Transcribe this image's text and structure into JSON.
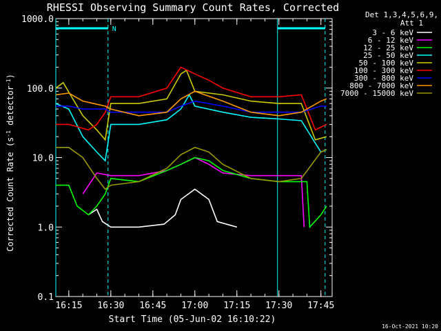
{
  "chart_data": {
    "type": "line",
    "title": "RHESSI Observing Summary Count Rates, Corrected",
    "xlabel": "Start Time (05-Jun-02 16:10:22)",
    "ylabel_main": "Corrected Count Rate (s",
    "ylabel_sup1": "-1",
    "ylabel_mid": " detector",
    "ylabel_sup2": "-1",
    "ylabel_end": ")",
    "ylim": [
      0.1,
      1000
    ],
    "yscale": "log",
    "y_ticks": [
      {
        "value": 0.1,
        "label": "0.1"
      },
      {
        "value": 1,
        "label": "1.0"
      },
      {
        "value": 10,
        "label": "10.0"
      },
      {
        "value": 100,
        "label": "100.0"
      },
      {
        "value": 1000,
        "label": "1000.0"
      }
    ],
    "xlim": [
      "16:10:22",
      "17:49:00"
    ],
    "x_ticks": [
      "16:15",
      "16:30",
      "16:45",
      "17:00",
      "17:15",
      "17:30",
      "17:45"
    ],
    "legend_header": [
      "Det 1,3,4,5,6,9,",
      "Att 1"
    ],
    "legend_placement": "right",
    "night_marker": "N",
    "markers": {
      "night_intervals": [
        [
          "16:10:22",
          "16:29:00"
        ],
        [
          "17:29:30",
          "17:46:30"
        ]
      ],
      "solid_lines": [
        "16:10:22",
        "17:29:30"
      ],
      "dashed_lines": [
        "16:29:00",
        "17:46:30"
      ]
    },
    "footer": "16-Oct-2021 10:20",
    "series": [
      {
        "name": "3 - 6 keV",
        "color": "#ffffff",
        "points": [
          [
            "16:22",
            "1.5"
          ],
          [
            "16:25",
            "1.8"
          ],
          [
            "16:27",
            "1.2"
          ],
          [
            "16:30",
            "1.0"
          ],
          [
            "16:40",
            "1.0"
          ],
          [
            "16:49",
            "1.1"
          ],
          [
            "16:53",
            "1.5"
          ],
          [
            "16:55",
            "2.5"
          ],
          [
            "17:00",
            "3.5"
          ],
          [
            "17:05",
            "2.5"
          ],
          [
            "17:08",
            "1.2"
          ],
          [
            "17:15",
            "1.0"
          ]
        ]
      },
      {
        "name": "6 - 12 keV",
        "color": "#ff00ff",
        "points": [
          [
            "16:20",
            "3.0"
          ],
          [
            "16:25",
            "6.0"
          ],
          [
            "16:30",
            "5.5"
          ],
          [
            "16:40",
            "5.5"
          ],
          [
            "16:50",
            "6.5"
          ],
          [
            "16:55",
            "8.0"
          ],
          [
            "17:00",
            "10.0"
          ],
          [
            "17:05",
            "8.0"
          ],
          [
            "17:10",
            "6.0"
          ],
          [
            "17:20",
            "5.5"
          ],
          [
            "17:28",
            "5.5"
          ],
          [
            "17:38",
            "5.5"
          ],
          [
            "17:39",
            "1.0"
          ]
        ]
      },
      {
        "name": "12 - 25 keV",
        "color": "#00ff00",
        "points": [
          [
            "16:10:22",
            "4.0"
          ],
          [
            "16:15",
            "4.0"
          ],
          [
            "16:18",
            "2.0"
          ],
          [
            "16:22",
            "1.5"
          ],
          [
            "16:25",
            "2.0"
          ],
          [
            "16:28",
            "3.0"
          ],
          [
            "16:30",
            "5.0"
          ],
          [
            "16:40",
            "4.5"
          ],
          [
            "16:50",
            "6.5"
          ],
          [
            "16:55",
            "8.0"
          ],
          [
            "17:00",
            "10.0"
          ],
          [
            "17:05",
            "9.0"
          ],
          [
            "17:10",
            "6.5"
          ],
          [
            "17:20",
            "5.0"
          ],
          [
            "17:30",
            "4.5"
          ],
          [
            "17:40",
            "4.5"
          ],
          [
            "17:41",
            "1.0"
          ],
          [
            "17:45",
            "1.5"
          ],
          [
            "17:47",
            "2.0"
          ]
        ]
      },
      {
        "name": "25 - 50 keV",
        "color": "#00ffff",
        "points": [
          [
            "16:10:22",
            "60"
          ],
          [
            "16:15",
            "50"
          ],
          [
            "16:20",
            "20"
          ],
          [
            "16:25",
            "12"
          ],
          [
            "16:28",
            "9"
          ],
          [
            "16:30",
            "30"
          ],
          [
            "16:40",
            "30"
          ],
          [
            "16:50",
            "35"
          ],
          [
            "16:55",
            "50"
          ],
          [
            "16:58",
            "80"
          ],
          [
            "17:00",
            "55"
          ],
          [
            "17:10",
            "45"
          ],
          [
            "17:20",
            "38"
          ],
          [
            "17:30",
            "36"
          ],
          [
            "17:38",
            "34"
          ],
          [
            "17:45",
            "12"
          ],
          [
            "17:47",
            "13"
          ]
        ]
      },
      {
        "name": "50 - 100 keV",
        "color": "#cccc00",
        "points": [
          [
            "16:10:22",
            "100"
          ],
          [
            "16:13",
            "120"
          ],
          [
            "16:20",
            "40"
          ],
          [
            "16:25",
            "25"
          ],
          [
            "16:28",
            "18"
          ],
          [
            "16:30",
            "60"
          ],
          [
            "16:40",
            "60"
          ],
          [
            "16:50",
            "70"
          ],
          [
            "16:55",
            "160"
          ],
          [
            "16:57",
            "180"
          ],
          [
            "17:00",
            "90"
          ],
          [
            "17:10",
            "80"
          ],
          [
            "17:20",
            "65"
          ],
          [
            "17:30",
            "60"
          ],
          [
            "17:38",
            "60"
          ],
          [
            "17:43",
            "18"
          ],
          [
            "17:47",
            "20"
          ]
        ]
      },
      {
        "name": "100 - 300 keV",
        "color": "#ff0000",
        "points": [
          [
            "16:10:22",
            "30"
          ],
          [
            "16:15",
            "30"
          ],
          [
            "16:22",
            "25"
          ],
          [
            "16:25",
            "30"
          ],
          [
            "16:28",
            "45"
          ],
          [
            "16:30",
            "75"
          ],
          [
            "16:40",
            "75"
          ],
          [
            "16:50",
            "100"
          ],
          [
            "16:55",
            "200"
          ],
          [
            "17:00",
            "160"
          ],
          [
            "17:05",
            "130"
          ],
          [
            "17:10",
            "100"
          ],
          [
            "17:20",
            "75"
          ],
          [
            "17:30",
            "75"
          ],
          [
            "17:38",
            "80"
          ],
          [
            "17:43",
            "25"
          ],
          [
            "17:47",
            "30"
          ]
        ]
      },
      {
        "name": "300 - 800 keV",
        "color": "#0000ff",
        "points": [
          [
            "16:10:22",
            "55"
          ],
          [
            "16:15",
            "55"
          ],
          [
            "16:20",
            "50"
          ],
          [
            "16:28",
            "50"
          ],
          [
            "16:30",
            "45"
          ],
          [
            "16:40",
            "45"
          ],
          [
            "16:50",
            "45"
          ],
          [
            "16:55",
            "55"
          ],
          [
            "17:00",
            "65"
          ],
          [
            "17:10",
            "55"
          ],
          [
            "17:20",
            "45"
          ],
          [
            "17:30",
            "45"
          ],
          [
            "17:38",
            "45"
          ],
          [
            "17:45",
            "55"
          ],
          [
            "17:47",
            "55"
          ]
        ]
      },
      {
        "name": "800 - 7000 keV",
        "color": "#ff9900",
        "points": [
          [
            "16:10:22",
            "80"
          ],
          [
            "16:15",
            "85"
          ],
          [
            "16:20",
            "65"
          ],
          [
            "16:28",
            "55"
          ],
          [
            "16:30",
            "50"
          ],
          [
            "16:40",
            "40"
          ],
          [
            "16:50",
            "45"
          ],
          [
            "16:55",
            "70"
          ],
          [
            "17:00",
            "90"
          ],
          [
            "17:10",
            "65"
          ],
          [
            "17:20",
            "45"
          ],
          [
            "17:30",
            "40"
          ],
          [
            "17:38",
            "45"
          ],
          [
            "17:45",
            "65"
          ],
          [
            "17:47",
            "70"
          ]
        ]
      },
      {
        "name": "7000 - 15000 keV",
        "color": "#999900",
        "points": [
          [
            "16:10:22",
            "14"
          ],
          [
            "16:15",
            "14"
          ],
          [
            "16:20",
            "10"
          ],
          [
            "16:25",
            "5"
          ],
          [
            "16:28",
            "3.5"
          ],
          [
            "16:30",
            "4"
          ],
          [
            "16:40",
            "4.5"
          ],
          [
            "16:50",
            "7"
          ],
          [
            "16:55",
            "11"
          ],
          [
            "17:00",
            "14"
          ],
          [
            "17:05",
            "12"
          ],
          [
            "17:10",
            "8"
          ],
          [
            "17:20",
            "5"
          ],
          [
            "17:30",
            "4.5"
          ],
          [
            "17:38",
            "5"
          ],
          [
            "17:45",
            "12"
          ],
          [
            "17:47",
            "13"
          ]
        ]
      }
    ]
  }
}
